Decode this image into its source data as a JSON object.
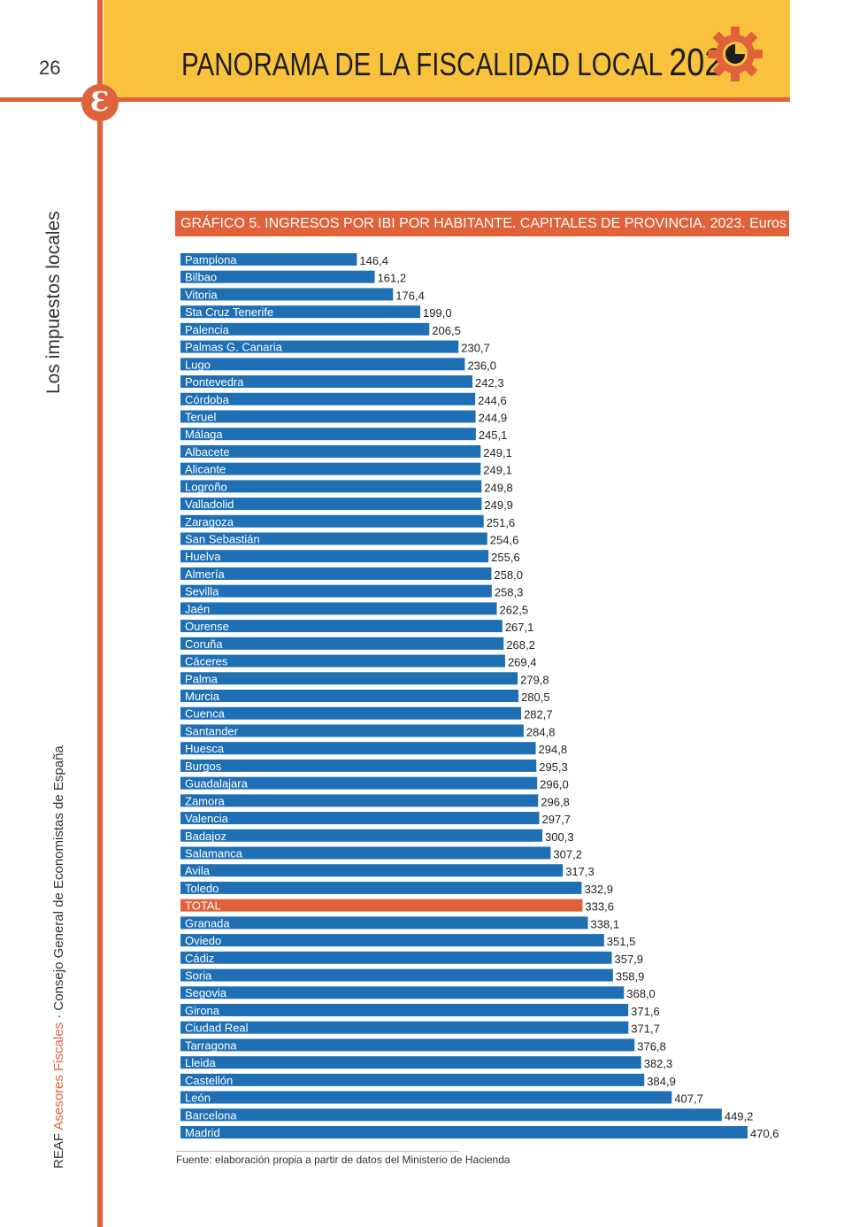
{
  "header": {
    "page_number": "26",
    "title": "PANORAMA DE LA FISCALIDAD LOCAL",
    "year": "2024",
    "logo_letter": "Ɛ"
  },
  "sidebar": {
    "section": "Los impuestos locales",
    "brand_prefix": "REAF ",
    "brand_accent": "Asesores Fiscales",
    "brand_suffix": " · Consejo General de Economistas de España"
  },
  "source": "Fuente: elaboración propia a partir de datos del Ministerio de Hacienda",
  "colors": {
    "bar": "#1f6fb5",
    "highlight_bar": "#e0623a",
    "accent": "#e0623a",
    "header_band": "#f9c23c"
  },
  "chart_data": {
    "type": "bar",
    "orientation": "horizontal",
    "title": "GRÁFICO 5. INGRESOS POR IBI POR HABITANTE. CAPITALES DE PROVINCIA. 2023. Euros",
    "highlight": "TOTAL",
    "xlim": [
      0,
      470.6
    ],
    "grid": false,
    "categories": [
      "Pamplona",
      "Bilbao",
      "Vitoria",
      "Sta Cruz Tenerife",
      "Palencia",
      "Palmas  G. Canaria",
      "Lugo",
      "Pontevedra",
      "Córdoba",
      "Teruel",
      "Málaga",
      "Albacete",
      "Alicante",
      "Logroño",
      "Valladolid",
      "Zaragoza",
      "San Sebastián",
      "Huelva",
      "Almería",
      "Sevilla",
      "Jaén",
      "Ourense",
      "Coruña",
      "Cáceres",
      "Palma",
      "Murcia",
      "Cuenca",
      "Santander",
      "Huesca",
      "Burgos",
      "Guadalajara",
      "Zamora",
      "Valencia",
      "Badajoz",
      "Salamanca",
      "Avila",
      "Toledo",
      "TOTAL",
      "Granada",
      "Oviedo",
      "Cádiz",
      "Soria",
      "Segovia",
      "Girona",
      "Ciudad Real",
      "Tarragona",
      "Lleida",
      "Castellón",
      "León",
      "Barcelona",
      "Madrid"
    ],
    "values": [
      146.4,
      161.2,
      176.4,
      199.0,
      206.5,
      230.7,
      236.0,
      242.3,
      244.6,
      244.9,
      245.1,
      249.1,
      249.1,
      249.8,
      249.9,
      251.6,
      254.6,
      255.6,
      258.0,
      258.3,
      262.5,
      267.1,
      268.2,
      269.4,
      279.8,
      280.5,
      282.7,
      284.8,
      294.8,
      295.3,
      296.0,
      296.8,
      297.7,
      300.3,
      307.2,
      317.3,
      332.9,
      333.6,
      338.1,
      351.5,
      357.9,
      358.9,
      368.0,
      371.6,
      371.7,
      376.8,
      382.3,
      384.9,
      407.7,
      449.2,
      470.6
    ],
    "labels": [
      "146,4",
      "161,2",
      "176,4",
      "199,0",
      "206,5",
      "230,7",
      "236,0",
      "242,3",
      "244,6",
      "244,9",
      "245,1",
      "249,1",
      "249,1",
      "249,8",
      "249,9",
      "251,6",
      "254,6",
      "255,6",
      "258,0",
      "258,3",
      "262,5",
      "267,1",
      "268,2",
      "269,4",
      "279,8",
      "280,5",
      "282,7",
      "284,8",
      "294,8",
      "295,3",
      "296,0",
      "296,8",
      "297,7",
      "300,3",
      "307,2",
      "317,3",
      "332,9",
      "333,6",
      "338,1",
      "351,5",
      "357,9",
      "358,9",
      "368,0",
      "371,6",
      "371,7",
      "376,8",
      "382,3",
      "384,9",
      "407,7",
      "449,2",
      "470,6"
    ]
  }
}
